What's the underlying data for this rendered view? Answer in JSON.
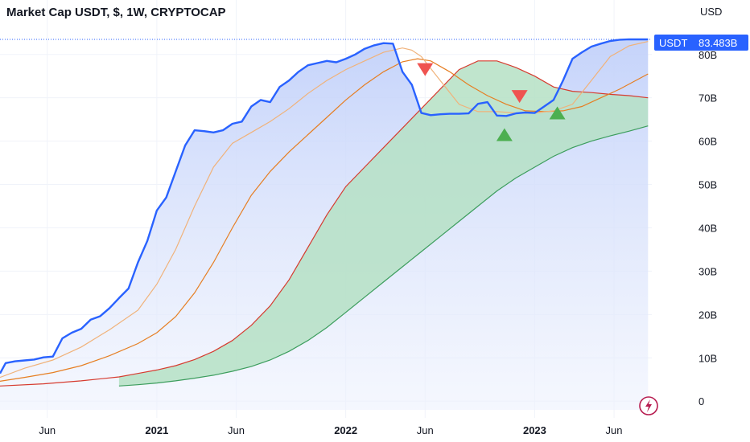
{
  "header": {
    "title": "Market Cap USDT, $, 1W, CRYPTOCAP",
    "currency_label": "USD"
  },
  "price_badge": {
    "symbol": "USDT",
    "value": "83.483B",
    "color": "#2962ff"
  },
  "colors": {
    "price_line": "#2962ff",
    "price_fill": "#c9d6fb",
    "ma_fast": "#f0b27a",
    "ma_mid": "#e67e22",
    "ma_slow_red": "#d63b2f",
    "ma_slow_green": "#3c9d5d",
    "band_fill_green": "#b5e0c4",
    "band_fill_teal": "#a9cdd3",
    "arrow_down": "#ef5350",
    "arrow_up": "#4caf50",
    "logo": "#b71c50"
  },
  "chart_data": {
    "type": "line",
    "title": "Market Cap USDT, $, 1W, CRYPTOCAP",
    "xlabel": "",
    "ylabel": "USD",
    "x_tick_labels": [
      "Jun",
      "2021",
      "Jun",
      "2022",
      "Jun",
      "2023",
      "Jun"
    ],
    "x_tick_years": [
      2020.42,
      2021.0,
      2021.42,
      2022.0,
      2022.42,
      2023.0,
      2023.42
    ],
    "y_tick_labels": [
      "0",
      "10B",
      "20B",
      "30B",
      "40B",
      "50B",
      "60B",
      "70B",
      "80B"
    ],
    "y_tick_values": [
      0,
      10,
      20,
      30,
      40,
      50,
      60,
      70,
      80
    ],
    "ylim": [
      -2,
      87
    ],
    "xlim": [
      2020.17,
      2023.62
    ],
    "grid": true,
    "series": [
      {
        "name": "USDT",
        "x": [
          2020.17,
          2020.2,
          2020.25,
          2020.3,
          2020.35,
          2020.4,
          2020.45,
          2020.5,
          2020.55,
          2020.6,
          2020.65,
          2020.7,
          2020.75,
          2020.8,
          2020.85,
          2020.9,
          2020.95,
          2021.0,
          2021.05,
          2021.1,
          2021.15,
          2021.2,
          2021.25,
          2021.3,
          2021.35,
          2021.4,
          2021.45,
          2021.5,
          2021.55,
          2021.6,
          2021.65,
          2021.7,
          2021.75,
          2021.8,
          2021.85,
          2021.9,
          2021.95,
          2022.0,
          2022.05,
          2022.1,
          2022.15,
          2022.2,
          2022.25,
          2022.3,
          2022.35,
          2022.4,
          2022.45,
          2022.5,
          2022.55,
          2022.6,
          2022.65,
          2022.7,
          2022.75,
          2022.8,
          2022.85,
          2022.9,
          2022.95,
          2023.0,
          2023.05,
          2023.1,
          2023.15,
          2023.2,
          2023.25,
          2023.3,
          2023.35,
          2023.4,
          2023.45,
          2023.5,
          2023.55,
          2023.6
        ],
        "values": [
          6.4,
          8.8,
          9.2,
          9.4,
          9.6,
          10.1,
          10.3,
          14.5,
          15.8,
          16.7,
          18.8,
          19.6,
          21.5,
          23.8,
          26.0,
          32.0,
          37.0,
          44.0,
          47.0,
          53.0,
          59.0,
          62.5,
          62.3,
          62.0,
          62.5,
          64.0,
          64.5,
          68.0,
          69.5,
          69.0,
          72.5,
          74.0,
          76.0,
          77.5,
          78.0,
          78.5,
          78.2,
          79.0,
          80.0,
          81.3,
          82.1,
          82.6,
          82.5,
          76.0,
          73.0,
          66.5,
          66.0,
          66.2,
          66.3,
          66.3,
          66.4,
          68.6,
          69.0,
          65.9,
          65.8,
          66.4,
          66.6,
          66.5,
          68.0,
          69.5,
          74.0,
          79.0,
          80.5,
          81.8,
          82.5,
          83.1,
          83.4,
          83.5,
          83.48,
          83.483
        ]
      },
      {
        "name": "",
        "x": [
          2020.17,
          2020.3,
          2020.45,
          2020.6,
          2020.75,
          2020.9,
          2021.0,
          2021.1,
          2021.2,
          2021.3,
          2021.4,
          2021.5,
          2021.6,
          2021.7,
          2021.8,
          2021.9,
          2022.0,
          2022.1,
          2022.2,
          2022.3,
          2022.35,
          2022.4,
          2022.5,
          2022.6,
          2022.7,
          2022.8,
          2022.9,
          2023.0,
          2023.1,
          2023.2,
          2023.3,
          2023.4,
          2023.5,
          2023.6
        ],
        "values": [
          5.5,
          7.6,
          9.5,
          12.5,
          16.5,
          21.0,
          27.0,
          35.0,
          45.0,
          54.0,
          59.5,
          62.0,
          64.5,
          67.5,
          71.0,
          74.0,
          76.5,
          78.5,
          80.5,
          81.5,
          81.0,
          79.5,
          74.0,
          68.5,
          66.8,
          66.8,
          66.5,
          66.5,
          67.0,
          68.5,
          74.0,
          79.5,
          82.0,
          83.0
        ]
      },
      {
        "name": "",
        "x": [
          2020.17,
          2020.3,
          2020.45,
          2020.6,
          2020.75,
          2020.9,
          2021.0,
          2021.1,
          2021.2,
          2021.3,
          2021.4,
          2021.5,
          2021.6,
          2021.7,
          2021.8,
          2021.9,
          2022.0,
          2022.1,
          2022.2,
          2022.3,
          2022.38,
          2022.45,
          2022.55,
          2022.65,
          2022.75,
          2022.85,
          2022.95,
          2023.05,
          2023.15,
          2023.25,
          2023.35,
          2023.45,
          2023.6
        ],
        "values": [
          4.6,
          5.5,
          6.6,
          8.2,
          10.5,
          13.3,
          15.8,
          19.5,
          25.0,
          32.0,
          40.0,
          47.5,
          53.0,
          57.5,
          61.5,
          65.5,
          69.5,
          73.0,
          76.0,
          78.3,
          79.0,
          78.5,
          76.0,
          73.0,
          70.5,
          68.5,
          67.0,
          66.8,
          67.0,
          68.0,
          70.0,
          72.0,
          75.5
        ]
      },
      {
        "name": "",
        "x": [
          2020.17,
          2020.4,
          2020.6,
          2020.8,
          2020.9,
          2021.0,
          2021.1,
          2021.2,
          2021.3,
          2021.4,
          2021.5,
          2021.6,
          2021.7,
          2021.8,
          2021.9,
          2022.0,
          2022.1,
          2022.2,
          2022.3,
          2022.4,
          2022.5,
          2022.6,
          2022.7,
          2022.8,
          2022.9,
          2023.0,
          2023.1,
          2023.2,
          2023.3,
          2023.4,
          2023.5,
          2023.6
        ],
        "values": [
          3.5,
          4.0,
          4.7,
          5.6,
          6.4,
          7.2,
          8.2,
          9.6,
          11.5,
          14.0,
          17.5,
          22.0,
          28.0,
          35.5,
          43.0,
          49.5,
          54.0,
          58.5,
          63.0,
          67.5,
          72.0,
          76.5,
          78.5,
          78.5,
          77.0,
          75.0,
          72.5,
          71.5,
          71.2,
          70.8,
          70.5,
          70.0
        ]
      },
      {
        "name": "",
        "x": [
          2020.8,
          2020.9,
          2021.0,
          2021.1,
          2021.2,
          2021.3,
          2021.4,
          2021.5,
          2021.6,
          2021.7,
          2021.8,
          2021.9,
          2022.0,
          2022.1,
          2022.2,
          2022.3,
          2022.4,
          2022.5,
          2022.6,
          2022.7,
          2022.8,
          2022.9,
          2023.0,
          2023.1,
          2023.2,
          2023.3,
          2023.4,
          2023.5,
          2023.6
        ],
        "values": [
          3.5,
          3.8,
          4.2,
          4.7,
          5.3,
          6.0,
          6.9,
          8.0,
          9.5,
          11.5,
          14.0,
          17.0,
          20.5,
          24.0,
          27.5,
          31.0,
          34.5,
          38.0,
          41.5,
          45.0,
          48.5,
          51.5,
          54.0,
          56.5,
          58.5,
          60.0,
          61.2,
          62.3,
          63.5
        ]
      }
    ],
    "signals": [
      {
        "type": "down",
        "x": 2022.42,
        "y": 76.5
      },
      {
        "type": "down",
        "x": 2022.92,
        "y": 70.3
      },
      {
        "type": "up",
        "x": 2022.84,
        "y": 61.5
      },
      {
        "type": "up",
        "x": 2023.12,
        "y": 66.5
      }
    ],
    "current_value_line": 83.483
  }
}
